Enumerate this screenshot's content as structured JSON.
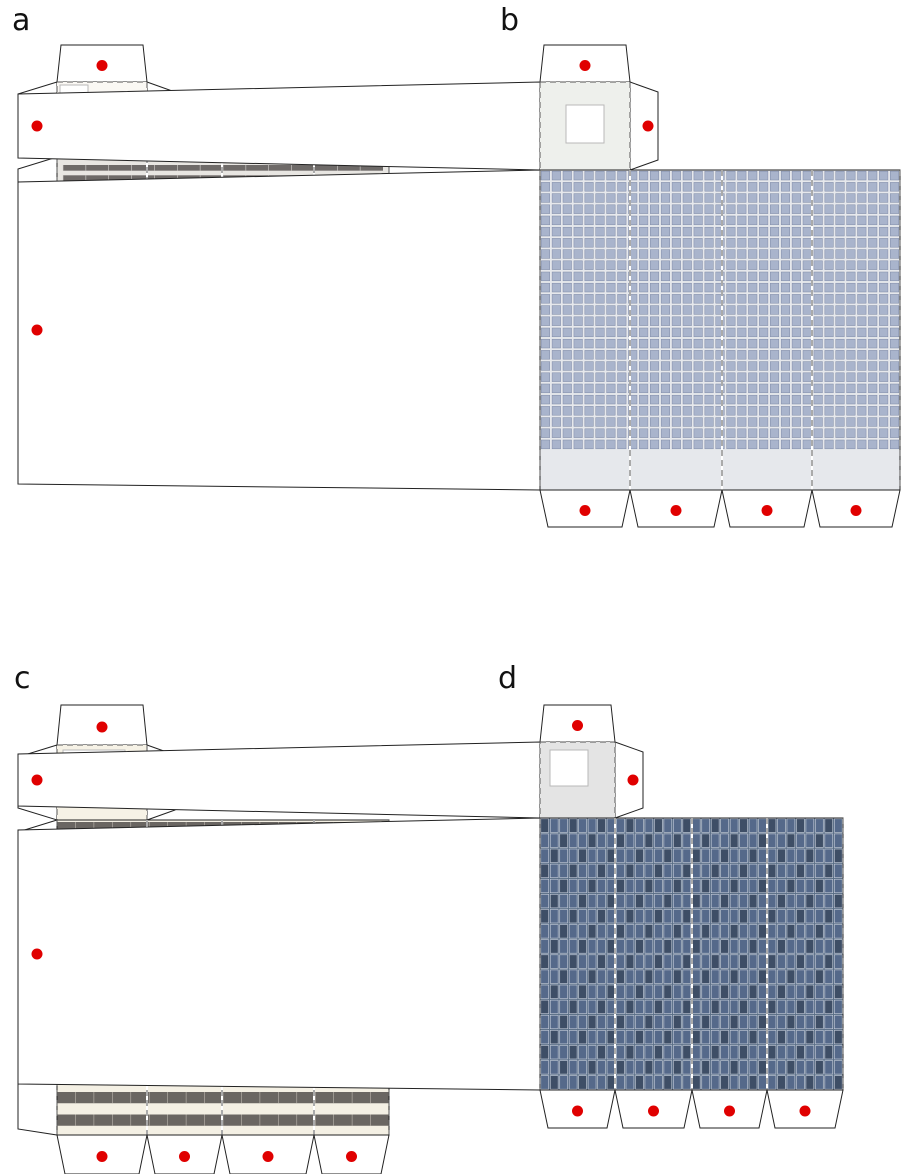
{
  "panels": [
    {
      "id": "a",
      "label": "a",
      "facade_style": "punched-windows",
      "facade_color": "#e8e6e2",
      "roof_color": "#faf8f4"
    },
    {
      "id": "b",
      "label": "b",
      "facade_style": "square-grid",
      "facade_color": "#e6e8ec",
      "roof_color": "#eef0ec"
    },
    {
      "id": "c",
      "label": "c",
      "facade_style": "ribbon-windows",
      "facade_color": "#f4f0e4",
      "roof_color": "#f6f2e6"
    },
    {
      "id": "d",
      "label": "d",
      "facade_style": "curtain-wall",
      "facade_color": "#5a6e86",
      "roof_color": "#e4e4e4"
    }
  ],
  "colors": {
    "glue_dot": "#e00000",
    "cut_line": "#222222",
    "fold_line": "#555555"
  }
}
